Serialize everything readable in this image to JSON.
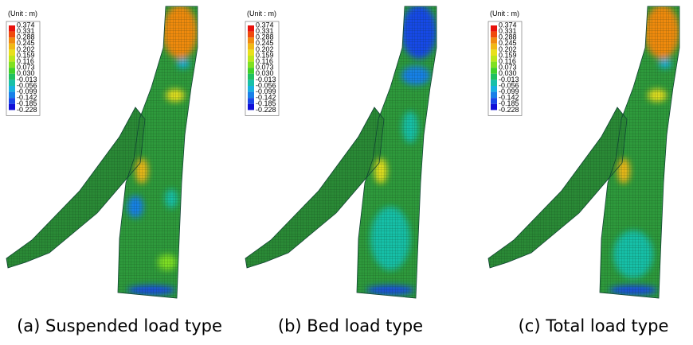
{
  "legend_colors": [
    "#e8120c",
    "#f04a0c",
    "#f08a10",
    "#f0b816",
    "#e8e01c",
    "#bce61c",
    "#80e020",
    "#40d02a",
    "#20c060",
    "#18c0a8",
    "#18b0e0",
    "#1880e8",
    "#1848e8",
    "#1010d8"
  ],
  "panels": [
    {
      "unit_label": "(Unit : m)",
      "legend_labels": [
        "0.374",
        "0.331",
        "0.288",
        "0.245",
        "0.202",
        "0.159",
        "0.116",
        "0.073",
        "0.030",
        "-0.013",
        "-0.056",
        "-0.099",
        "-0.142",
        "-0.185",
        "-0.228"
      ],
      "caption": "(a)  Suspended  load  type"
    },
    {
      "unit_label": "(Unit : m)",
      "legend_labels": [
        "0.374",
        "0.331",
        "0.288",
        "0.245",
        "0.202",
        "0.159",
        "0.116",
        "0.073",
        "0.030",
        "-0.013",
        "-0.056",
        "-0.099",
        "-0.142",
        "-0.185",
        "-0.228"
      ],
      "caption": "(b)  Bed  load  type"
    },
    {
      "unit_label": "(Unit : m)",
      "legend_labels": [
        "0.374",
        "0.331",
        "0.288",
        "0.245",
        "0.202",
        "0.159",
        "0.116",
        "0.073",
        "0.030",
        "-0.013",
        "-0.056",
        "-0.099",
        "-0.142",
        "-0.185",
        "-0.228"
      ],
      "caption": "(c)  Total  load  type"
    }
  ]
}
